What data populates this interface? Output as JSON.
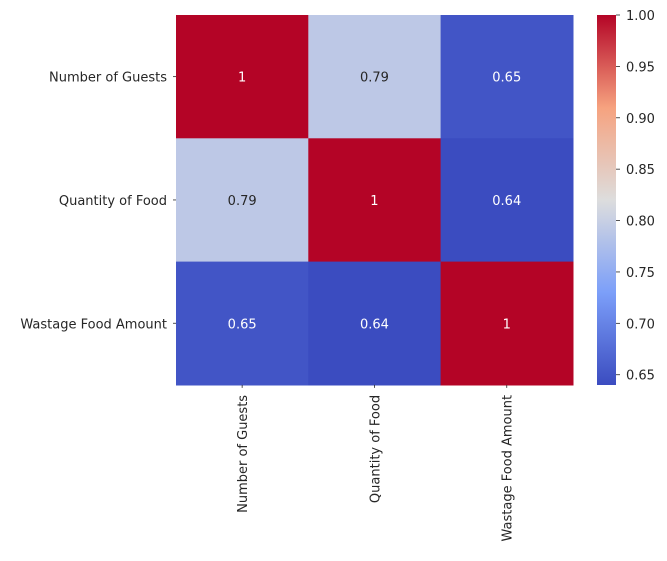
{
  "chart_data": {
    "type": "heatmap",
    "title": "",
    "xlabel": "",
    "ylabel": "",
    "colormap": "coolwarm",
    "x_categories": [
      "Number of Guests",
      "Quantity of Food",
      "Wastage Food Amount"
    ],
    "y_categories": [
      "Number of Guests",
      "Quantity of Food",
      "Wastage Food Amount"
    ],
    "values": [
      [
        1,
        0.79,
        0.65
      ],
      [
        0.79,
        1,
        0.64
      ],
      [
        0.65,
        0.64,
        1
      ]
    ],
    "cell_labels": [
      [
        "1",
        "0.79",
        "0.65"
      ],
      [
        "0.79",
        "1",
        "0.64"
      ],
      [
        "0.65",
        "0.64",
        "1"
      ]
    ],
    "colorbar": {
      "vmin": 0.64,
      "vmax": 1.0,
      "ticks": [
        "0.65",
        "0.70",
        "0.75",
        "0.80",
        "0.85",
        "0.90",
        "0.95",
        "1.00"
      ]
    },
    "grid": false
  }
}
